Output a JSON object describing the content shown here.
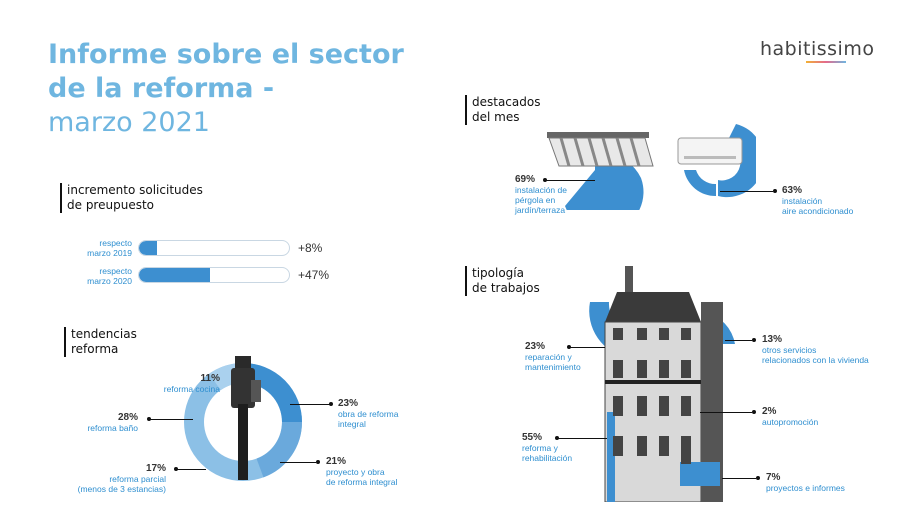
{
  "header": {
    "title_line1": "Informe sobre el sector",
    "title_line2": "de la reforma -",
    "title_line3": "marzo 2021",
    "logo": "habitissimo"
  },
  "incremento": {
    "heading_line1": "incremento solicitudes",
    "heading_line2": "de preupuesto",
    "rows": [
      {
        "label_line1": "respecto",
        "label_line2": "marzo 2019",
        "value": "+8%",
        "fill_fraction": 0.08
      },
      {
        "label_line1": "respecto",
        "label_line2": "marzo 2020",
        "value": "+47%",
        "fill_fraction": 0.47
      }
    ]
  },
  "tendencias": {
    "heading_line1": "tendencias",
    "heading_line2": "reforma",
    "items": [
      {
        "pct": "11%",
        "label": "reforma cocina",
        "share": 11
      },
      {
        "pct": "28%",
        "label": "reforma baño",
        "share": 28
      },
      {
        "pct": "17%",
        "label_line1": "reforma parcial",
        "label_line2": "(menos de 3 estancias)",
        "share": 17
      },
      {
        "pct": "23%",
        "label_line1": "obra de reforma",
        "label_line2": "integral",
        "share": 23
      },
      {
        "pct": "21%",
        "label_line1": "proyecto y obra",
        "label_line2": "de reforma integral",
        "share": 21
      }
    ]
  },
  "destacados": {
    "heading_line1": "destacados",
    "heading_line2": "del mes",
    "items": [
      {
        "pct": "69%",
        "label_line1": "instalación de",
        "label_line2": "pérgola en",
        "label_line3": "jardín/terraza"
      },
      {
        "pct": "63%",
        "label_line1": "instalación",
        "label_line2": "aire acondicionado"
      }
    ]
  },
  "tipologia": {
    "heading_line1": "tipología",
    "heading_line2": "de trabajos",
    "items": [
      {
        "pct": "23%",
        "label_line1": "reparación y",
        "label_line2": "mantenimiento"
      },
      {
        "pct": "55%",
        "label_line1": "reforma y",
        "label_line2": "rehabilitación"
      },
      {
        "pct": "13%",
        "label_line1": "otros servicios",
        "label_line2": "relacionados con la vivienda"
      },
      {
        "pct": "2%",
        "label_line1": "autopromoción"
      },
      {
        "pct": "7%",
        "label_line1": "proyectos e informes"
      }
    ]
  },
  "colors": {
    "accent": "#3d8fd0",
    "title": "#6fb6e0",
    "light": "#8cc0e6"
  }
}
